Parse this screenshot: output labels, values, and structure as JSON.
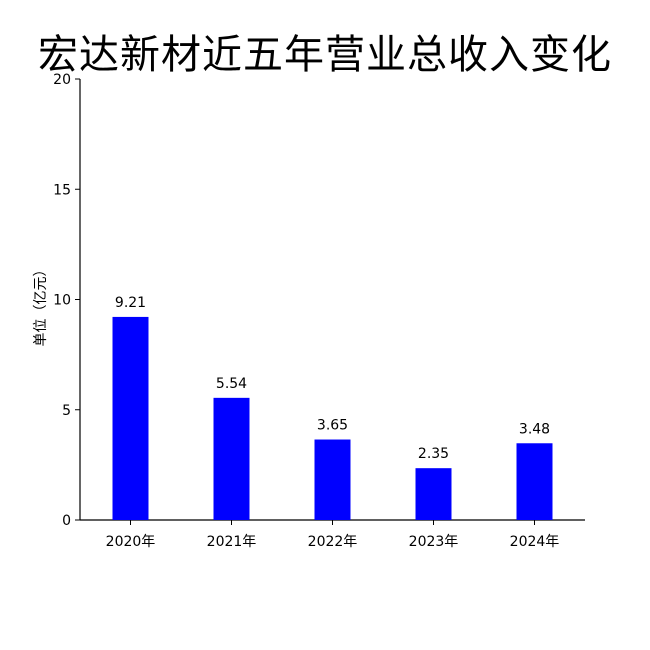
{
  "title": "宏达新材近五年营业总收入变化",
  "chart_data": {
    "type": "bar",
    "title": "宏达新材近五年营业总收入变化",
    "xlabel": "",
    "ylabel": "单位（亿元）",
    "categories": [
      "2020年",
      "2021年",
      "2022年",
      "2023年",
      "2024年"
    ],
    "values": [
      9.21,
      5.54,
      3.65,
      2.35,
      3.48
    ],
    "data_labels": [
      "9.21",
      "5.54",
      "3.65",
      "2.35",
      "3.48"
    ],
    "ylim": [
      0,
      20
    ],
    "yticks": [
      0,
      5,
      10,
      15,
      20
    ],
    "grid": false,
    "legend": "none",
    "bar_color": "#0000ff"
  }
}
